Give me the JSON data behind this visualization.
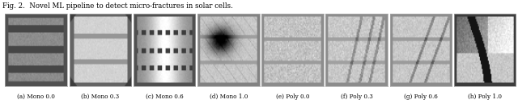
{
  "figure_label": "Fig. 2.  Novel ML pipeline to detect micro-fractures in solar cells.",
  "captions": [
    "(a) Mono 0.0",
    "(b) Mono 0.3",
    "(c) Mono 0.6",
    "(d) Mono 1.0",
    "(e) Poly 0.0",
    "(f) Poly 0.3",
    "(g) Poly 0.6",
    "(h) Poly 1.0"
  ],
  "n_images": 8,
  "fig_width": 6.4,
  "fig_height": 1.29,
  "bg_color": "#ffffff",
  "text_color": "#000000",
  "label_fontsize": 5.2,
  "title_fontsize": 6.2,
  "image_border_color": "#aaaaaa",
  "image_border_lw": 0.5
}
